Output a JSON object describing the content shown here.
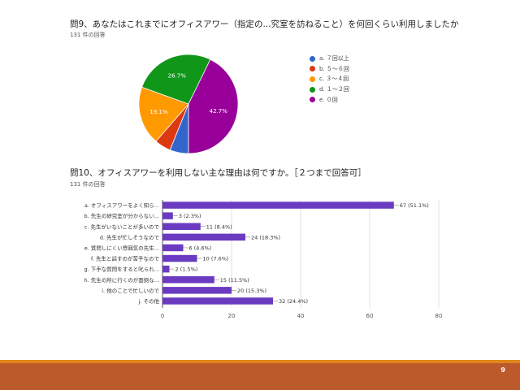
{
  "q9": {
    "title": "問9、あなたはこれまでにオフィスアワー（指定の...究室を訪ねること）を何回くらい利用しましたか",
    "responses": "131 件の回答"
  },
  "q10": {
    "title": "問10、オフィスアワーを利用しない主な理由は何ですか。［２つまで回答可］",
    "responses": "131 件の回答"
  },
  "page_number": "9",
  "colors": {
    "bar": "#6a3bc1",
    "footer": "#bd5a2c",
    "footer_line": "#e0861b"
  },
  "chart_data": [
    {
      "type": "pie",
      "categories": [
        "a. ７回以上",
        "b. ５～６回",
        "c. ３～４回",
        "d. １～２回",
        "e. ０回"
      ],
      "values": [
        6.1,
        5.3,
        19.1,
        26.7,
        42.7
      ],
      "data_labels": [
        "",
        "",
        "19.1%",
        "26.7%",
        "42.7%"
      ],
      "colors": [
        "#3366cc",
        "#dc3912",
        "#ff9900",
        "#109618",
        "#990099"
      ],
      "legend": "right"
    },
    {
      "type": "bar",
      "orientation": "horizontal",
      "categories": [
        "a. オフィスアワーをよく知ら...",
        "b. 先生の研究室が分からない...",
        "c. 先生がいないことが多いので",
        "d. 先生が忙しそうなので",
        "e. 質問しにくい雰囲気の先生...",
        "f. 先生と話すのが苦手なので",
        "g. 下手な質問をすると叱られ...",
        "h. 先生の所に行くのが面倒な...",
        "i. 他のことで忙しいので",
        "j. その他"
      ],
      "values": [
        67,
        3,
        11,
        24,
        6,
        10,
        2,
        15,
        20,
        32
      ],
      "data_labels": [
        "67 (51.1%)",
        "3 (2.3%)",
        "11 (8.4%)",
        "24 (18.3%)",
        "6 (4.6%)",
        "10 (7.6%)",
        "2 (1.5%)",
        "15 (11.5%)",
        "20 (15.3%)",
        "32 (24.4%)"
      ],
      "xlim": [
        0,
        80
      ],
      "xticks": [
        "0",
        "20",
        "40",
        "60",
        "80"
      ],
      "grid": true
    }
  ]
}
